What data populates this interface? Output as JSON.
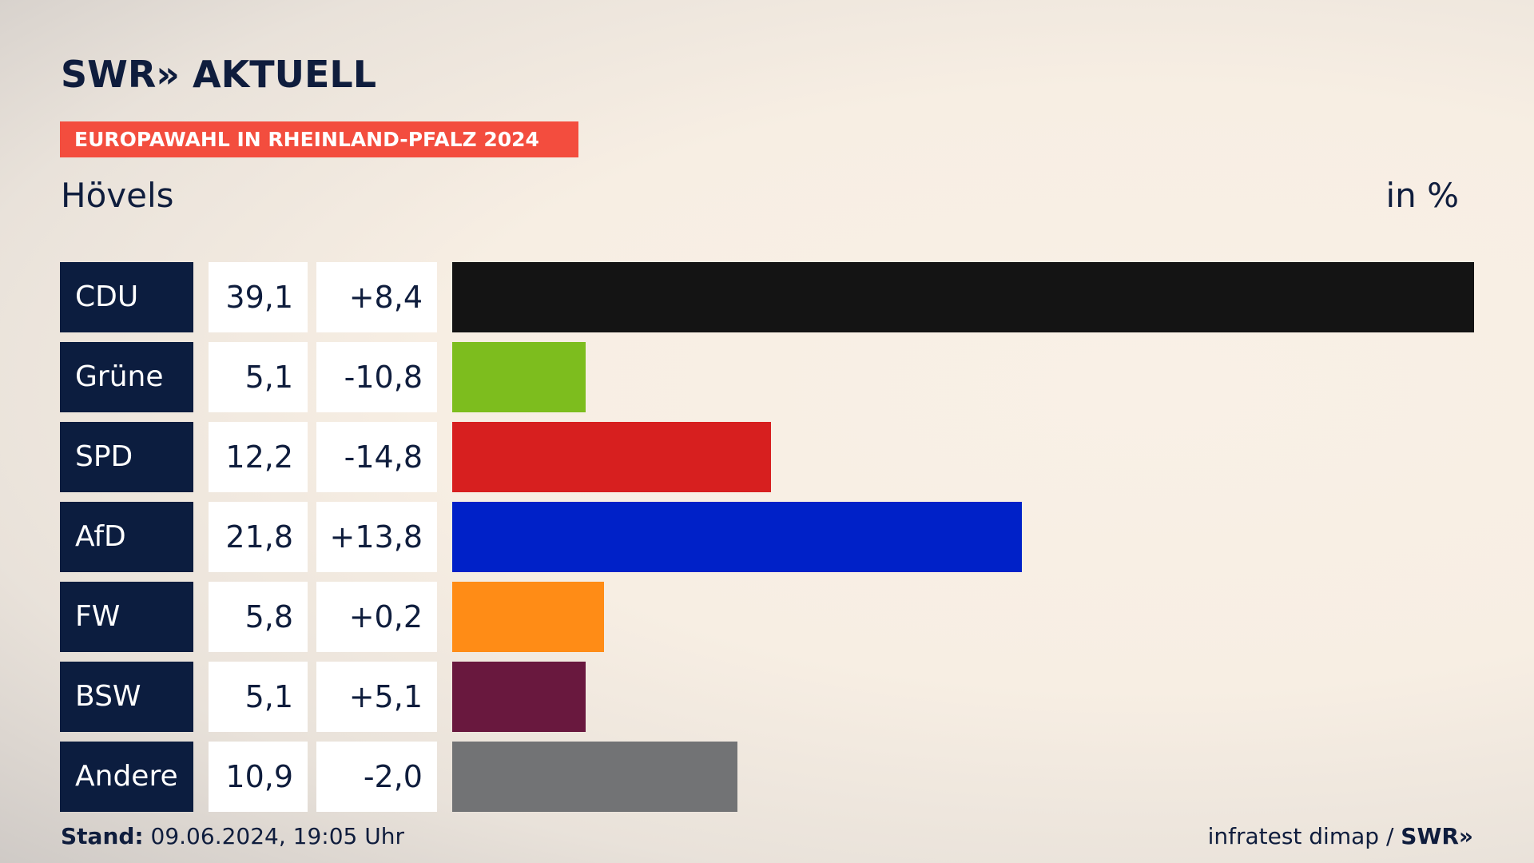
{
  "header": {
    "logo_text": "SWR» AKTUELL",
    "banner": "EUROPAWAHL IN RHEINLAND-PFALZ 2024",
    "place": "Hövels",
    "unit": "in %"
  },
  "footer": {
    "stand_label": "Stand:",
    "stand_value": "09.06.2024, 19:05 Uhr",
    "source": "infratest dimap /",
    "source_logo": "SWR»"
  },
  "chart_data": {
    "type": "bar",
    "orientation": "horizontal",
    "categories": [
      "CDU",
      "Grüne",
      "SPD",
      "AfD",
      "FW",
      "BSW",
      "Andere"
    ],
    "values": [
      39.1,
      5.1,
      12.2,
      21.8,
      5.8,
      5.1,
      10.9
    ],
    "value_labels": [
      "39,1",
      "5,1",
      "12,2",
      "21,8",
      "5,8",
      "5,1",
      "10,9"
    ],
    "change_labels": [
      "+8,4",
      "-10,8",
      "-14,8",
      "+13,8",
      "+0,2",
      "+5,1",
      "-2,0"
    ],
    "changes": [
      8.4,
      -10.8,
      -14.8,
      13.8,
      0.2,
      5.1,
      -2.0
    ],
    "colors": [
      "#141414",
      "#7dbd1e",
      "#d71f1f",
      "#0021c8",
      "#ff8c16",
      "#69183e",
      "#727375"
    ],
    "xlim": [
      0,
      39.1
    ]
  }
}
